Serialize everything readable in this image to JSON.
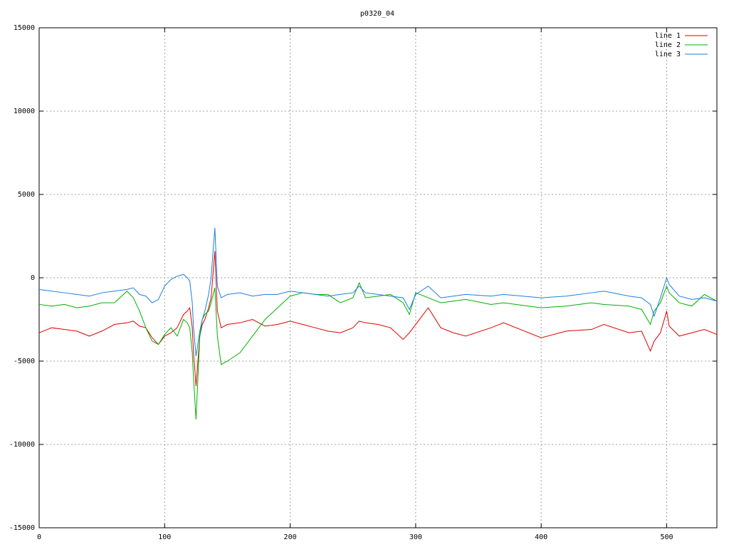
{
  "chart_data": {
    "type": "line",
    "title": "p0320_04",
    "x": [
      0,
      10,
      20,
      30,
      40,
      50,
      60,
      70,
      75,
      80,
      85,
      90,
      95,
      100,
      105,
      110,
      115,
      118,
      120,
      122,
      123,
      125,
      128,
      130,
      132,
      135,
      137,
      140,
      142,
      145,
      150,
      160,
      170,
      180,
      190,
      200,
      210,
      220,
      230,
      240,
      250,
      255,
      260,
      270,
      280,
      290,
      295,
      300,
      310,
      320,
      330,
      340,
      360,
      370,
      400,
      420,
      440,
      450,
      470,
      480,
      487,
      490,
      495,
      500,
      502,
      510,
      520,
      530,
      540
    ],
    "series": [
      {
        "name": "line 1",
        "color": "#e00000",
        "values": [
          -3300,
          -3000,
          -3100,
          -3200,
          -3500,
          -3200,
          -2800,
          -2700,
          -2600,
          -2900,
          -3000,
          -3600,
          -4000,
          -3500,
          -3300,
          -3000,
          -2200,
          -2000,
          -1800,
          -3000,
          -4500,
          -6500,
          -3500,
          -2800,
          -2500,
          -1800,
          -1200,
          1600,
          -2000,
          -3000,
          -2800,
          -2700,
          -2500,
          -2900,
          -2800,
          -2600,
          -2800,
          -3000,
          -3200,
          -3300,
          -3000,
          -2600,
          -2700,
          -2800,
          -3000,
          -3700,
          -3300,
          -2800,
          -1800,
          -3000,
          -3300,
          -3500,
          -3000,
          -2700,
          -3600,
          -3200,
          -3100,
          -2800,
          -3300,
          -3200,
          -4400,
          -3800,
          -3300,
          -2000,
          -2900,
          -3500,
          -3300,
          -3100,
          -3400
        ]
      },
      {
        "name": "line 2",
        "color": "#00b000",
        "values": [
          -1600,
          -1700,
          -1600,
          -1800,
          -1700,
          -1500,
          -1500,
          -800,
          -1200,
          -2000,
          -3000,
          -3800,
          -4000,
          -3400,
          -3000,
          -3500,
          -2500,
          -2700,
          -3000,
          -4500,
          -6000,
          -8500,
          -3500,
          -2500,
          -2200,
          -2000,
          -1500,
          -600,
          -3500,
          -5200,
          -5000,
          -4500,
          -3500,
          -2500,
          -1800,
          -1100,
          -900,
          -1000,
          -1000,
          -1500,
          -1200,
          -300,
          -1200,
          -1100,
          -1000,
          -1500,
          -2200,
          -900,
          -1200,
          -1500,
          -1400,
          -1300,
          -1600,
          -1500,
          -1800,
          -1700,
          -1500,
          -1600,
          -1700,
          -1900,
          -2800,
          -2000,
          -1500,
          -500,
          -900,
          -1500,
          -1700,
          -1000,
          -1400
        ]
      },
      {
        "name": "line 3",
        "color": "#1a7fe0",
        "values": [
          -700,
          -800,
          -900,
          -1000,
          -1100,
          -900,
          -800,
          -700,
          -600,
          -1000,
          -1100,
          -1500,
          -1300,
          -500,
          -100,
          100,
          200,
          0,
          -200,
          -1500,
          -3000,
          -4700,
          -3200,
          -2500,
          -2000,
          -1000,
          0,
          3000,
          -500,
          -1200,
          -1000,
          -900,
          -1100,
          -1000,
          -1000,
          -800,
          -900,
          -1000,
          -1100,
          -1000,
          -900,
          -500,
          -900,
          -1000,
          -1100,
          -1200,
          -1900,
          -1000,
          -500,
          -1200,
          -1100,
          -1000,
          -1100,
          -1000,
          -1200,
          -1100,
          -900,
          -800,
          -1100,
          -1200,
          -1600,
          -2300,
          -1200,
          0,
          -400,
          -1100,
          -1300,
          -1200,
          -1400
        ]
      }
    ],
    "xlim": [
      0,
      540
    ],
    "ylim": [
      -15000,
      15000
    ],
    "xticks": [
      0,
      100,
      200,
      300,
      400,
      500
    ],
    "yticks": [
      -15000,
      -10000,
      -5000,
      0,
      5000,
      10000,
      15000
    ],
    "grid": true,
    "legend": "top-right"
  }
}
